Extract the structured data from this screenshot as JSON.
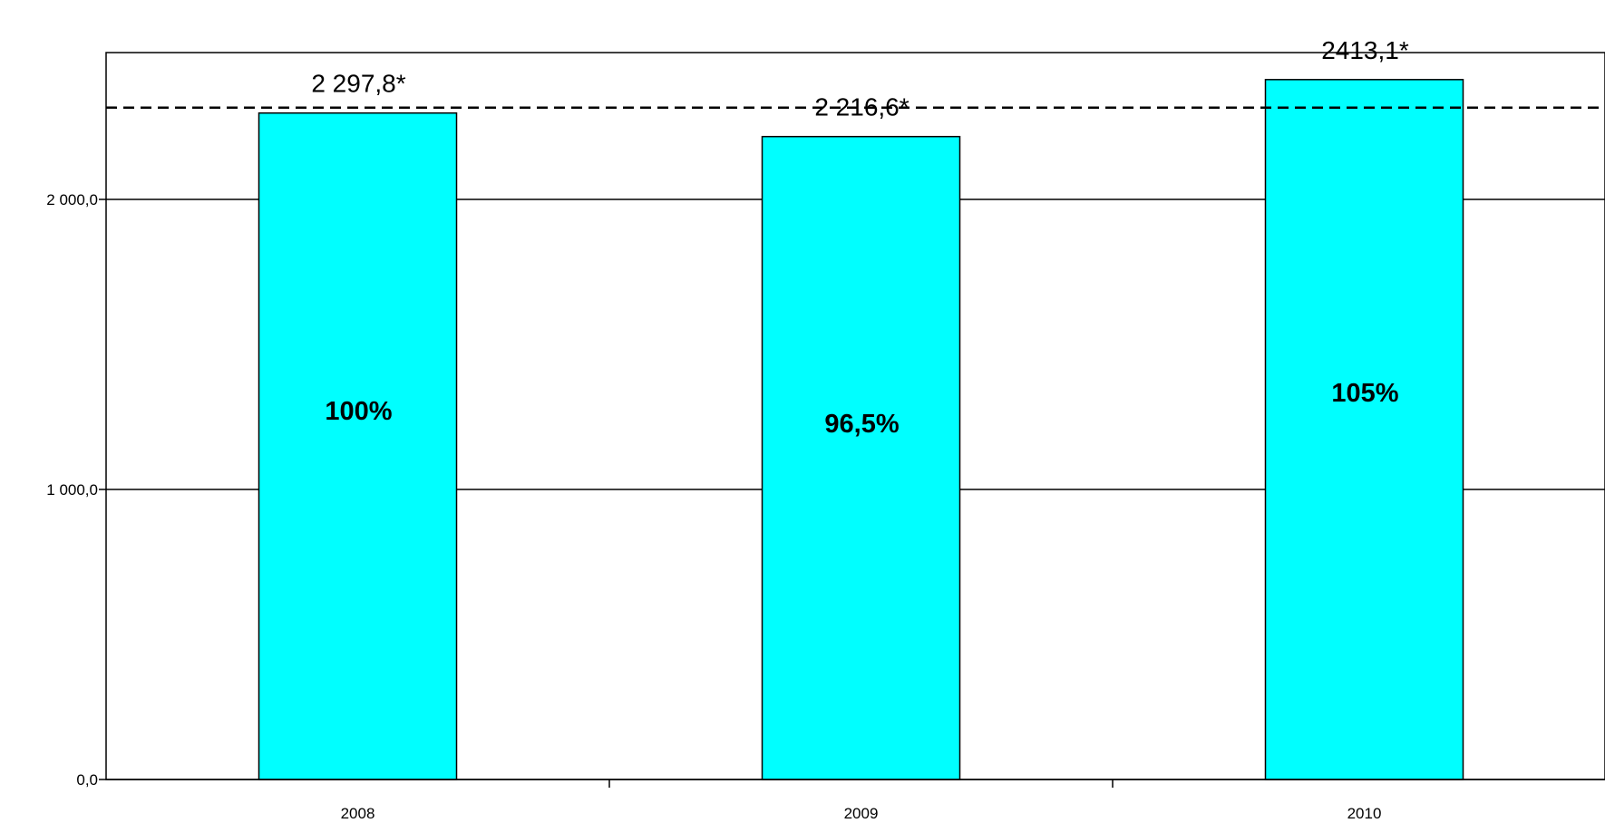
{
  "chart_data": {
    "type": "bar",
    "categories": [
      "2008",
      "2009",
      "2010"
    ],
    "values": [
      2297.8,
      2216.6,
      2413.1
    ],
    "value_labels": [
      "2 297,8*",
      "2 216,6*",
      "2413,1*"
    ],
    "percent_labels": [
      "100%",
      "96,5%",
      "105%"
    ],
    "reference_line": 2297.8,
    "ylim": [
      0,
      2000.0
    ],
    "yticks": [
      0,
      1000,
      2000
    ],
    "ytick_labels": [
      "0,0",
      "1 000,0",
      "2 000,0"
    ],
    "grid": true,
    "bar_color": "#00ffff",
    "title": "",
    "xlabel": "",
    "ylabel": ""
  }
}
